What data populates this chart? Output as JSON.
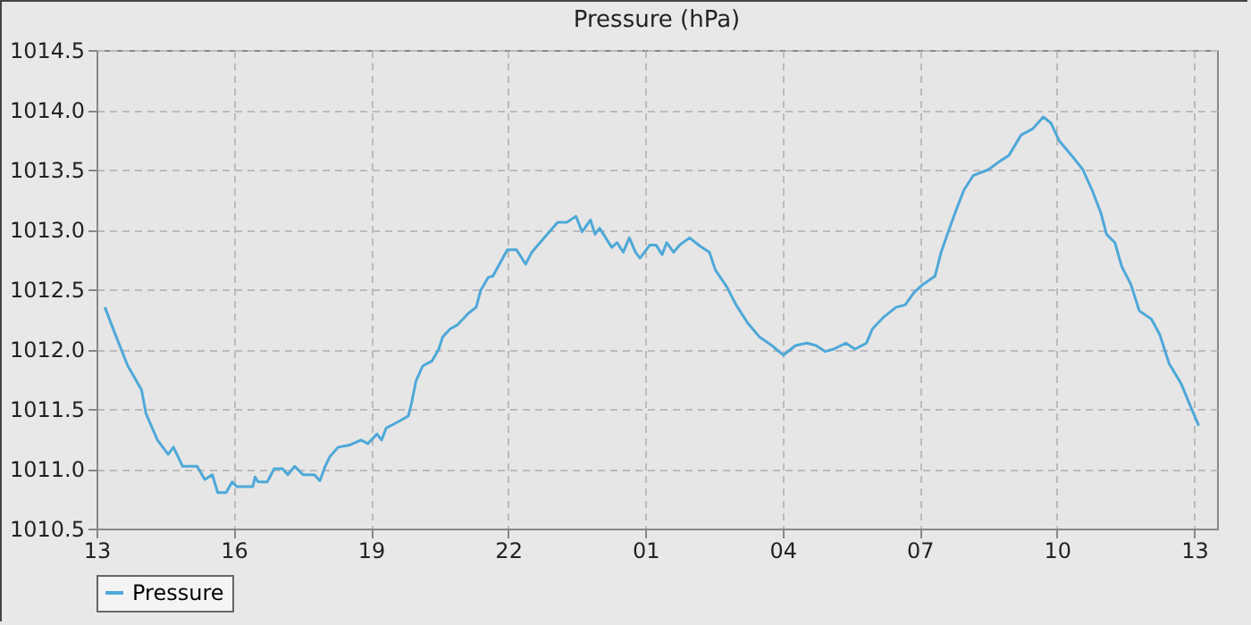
{
  "chart_data": {
    "type": "line",
    "title": "Pressure (hPa)",
    "x": [
      "--01-01T13:11",
      "--01-01T13:23",
      "--01-01T13:41",
      "--01-01T13:59",
      "--01-01T14:05",
      "--01-01T14:20",
      "--01-01T14:34",
      "--01-01T14:41",
      "--01-01T14:53",
      "--01-01T15:12",
      "--01-01T15:22",
      "--01-01T15:32",
      "--01-01T15:39",
      "--01-01T15:50",
      "--01-01T15:58",
      "--01-01T16:04",
      "--01-01T16:25",
      "--01-01T16:28",
      "--01-01T16:32",
      "--01-01T16:44",
      "--01-01T16:53",
      "--01-01T17:04",
      "--01-01T17:11",
      "--01-01T17:20",
      "--01-01T17:31",
      "--01-01T17:46",
      "--01-01T17:53",
      "--01-01T18:00",
      "--01-01T18:06",
      "--01-01T18:17",
      "--01-01T18:33",
      "--01-01T18:47",
      "--01-01T18:56",
      "--01-01T19:08",
      "--01-01T19:14",
      "--01-01T19:20",
      "--01-01T19:35",
      "--01-01T19:49",
      "--01-01T19:53",
      "--01-01T19:59",
      "--01-01T20:08",
      "--01-01T20:20",
      "--01-01T20:29",
      "--01-01T20:34",
      "--01-01T20:44",
      "--01-01T20:53",
      "--01-01T21:08",
      "--01-01T21:18",
      "--01-01T21:24",
      "--01-01T21:34",
      "--01-01T21:40",
      "--01-01T21:59",
      "--01-01T22:11",
      "--01-01T22:23",
      "--01-01T22:31",
      "--01-01T22:54",
      "--01-01T23:05",
      "--01-01T23:17",
      "--01-01T23:29",
      "--01-01T23:37",
      "--01-01T23:48",
      "--01-01T23:54",
      "--01-02T00:00",
      "--01-02T00:16",
      "--01-02T00:23",
      "--01-02T00:31",
      "--01-02T00:39",
      "--01-02T00:47",
      "--01-02T00:53",
      "--01-02T01:06",
      "--01-02T01:14",
      "--01-02T01:22",
      "--01-02T01:28",
      "--01-02T01:37",
      "--01-02T01:45",
      "--01-02T01:58",
      "--01-02T02:12",
      "--01-02T02:24",
      "--01-02T02:32",
      "--01-02T02:47",
      "--01-02T02:59",
      "--01-02T03:14",
      "--01-02T03:30",
      "--01-02T03:46",
      "--01-02T04:01",
      "--01-02T04:17",
      "--01-02T04:32",
      "--01-02T04:44",
      "--01-02T04:56",
      "--01-02T05:07",
      "--01-02T05:23",
      "--01-02T05:35",
      "--01-02T05:50",
      "--01-02T05:58",
      "--01-02T06:13",
      "--01-02T06:29",
      "--01-02T06:41",
      "--01-02T06:52",
      "--01-02T07:04",
      "--01-02T07:20",
      "--01-02T07:28",
      "--01-02T07:39",
      "--01-02T07:47",
      "--01-02T07:58",
      "--01-02T08:10",
      "--01-02T08:30",
      "--01-02T08:45",
      "--01-02T08:57",
      "--01-02T09:13",
      "--01-02T09:28",
      "--01-02T09:42",
      "--01-02T09:52",
      "--01-02T10:03",
      "--01-02T10:19",
      "--01-02T10:34",
      "--01-02T10:46",
      "--01-02T10:58",
      "--01-02T11:05",
      "--01-02T11:16",
      "--01-02T11:25",
      "--01-02T11:37",
      "--01-02T11:48",
      "--01-02T12:04",
      "--01-02T12:15",
      "--01-02T12:27",
      "--01-02T12:43",
      "--01-02T12:54",
      "--01-02T13:06"
    ],
    "series": [
      {
        "name": "Pressure",
        "color": "#4ea8d8",
        "values": [
          1012.35,
          1012.15,
          1011.86,
          1011.66,
          1011.46,
          1011.24,
          1011.12,
          1011.18,
          1011.02,
          1011.02,
          1010.91,
          1010.95,
          1010.8,
          1010.8,
          1010.89,
          1010.85,
          1010.85,
          1010.93,
          1010.89,
          1010.89,
          1011.0,
          1011.0,
          1010.95,
          1011.02,
          1010.95,
          1010.95,
          1010.9,
          1011.02,
          1011.1,
          1011.18,
          1011.2,
          1011.24,
          1011.21,
          1011.29,
          1011.24,
          1011.34,
          1011.39,
          1011.44,
          1011.54,
          1011.73,
          1011.86,
          1011.9,
          1012.0,
          1012.1,
          1012.17,
          1012.2,
          1012.3,
          1012.35,
          1012.49,
          1012.6,
          1012.61,
          1012.83,
          1012.83,
          1012.71,
          1012.81,
          1012.98,
          1013.06,
          1013.06,
          1013.11,
          1012.98,
          1013.08,
          1012.96,
          1013.01,
          1012.85,
          1012.89,
          1012.81,
          1012.93,
          1012.81,
          1012.76,
          1012.87,
          1012.87,
          1012.79,
          1012.89,
          1012.81,
          1012.87,
          1012.93,
          1012.86,
          1012.81,
          1012.66,
          1012.52,
          1012.37,
          1012.22,
          1012.1,
          1012.03,
          1011.95,
          1012.03,
          1012.05,
          1012.03,
          1011.98,
          1012.0,
          1012.05,
          1012.0,
          1012.05,
          1012.17,
          1012.27,
          1012.35,
          1012.37,
          1012.47,
          1012.54,
          1012.61,
          1012.81,
          1013.01,
          1013.15,
          1013.33,
          1013.45,
          1013.5,
          1013.57,
          1013.62,
          1013.79,
          1013.84,
          1013.94,
          1013.89,
          1013.74,
          1013.62,
          1013.5,
          1013.33,
          1013.13,
          1012.96,
          1012.89,
          1012.69,
          1012.54,
          1012.32,
          1012.25,
          1012.12,
          1011.88,
          1011.71,
          1011.54,
          1011.36
        ]
      }
    ],
    "xlim": [
      "--01-01T13:00",
      "--01-02T13:30"
    ],
    "xticks": [
      {
        "value": "--01-01T13:00",
        "label": "13"
      },
      {
        "value": "--01-01T16:00",
        "label": "16"
      },
      {
        "value": "--01-01T19:00",
        "label": "19"
      },
      {
        "value": "--01-01T22:00",
        "label": "22"
      },
      {
        "value": "--01-02T01:00",
        "label": "01"
      },
      {
        "value": "--01-02T04:00",
        "label": "04"
      },
      {
        "value": "--01-02T07:00",
        "label": "07"
      },
      {
        "value": "--01-02T10:00",
        "label": "10"
      },
      {
        "value": "--01-02T13:00",
        "label": "13"
      }
    ],
    "ylim": [
      1010.5,
      1014.5
    ],
    "yticks": [
      1010.5,
      {
        "value": 1011,
        "label": "1011.0"
      },
      1011.5,
      {
        "value": 1012,
        "label": "1012.0"
      },
      1012.5,
      {
        "value": 1013,
        "label": "1013.0"
      },
      1013.5,
      {
        "value": 1014,
        "label": "1014.0"
      },
      1014.5
    ],
    "grid": true,
    "legend": "bottom",
    "marker": "none",
    "line_style": "solid"
  }
}
